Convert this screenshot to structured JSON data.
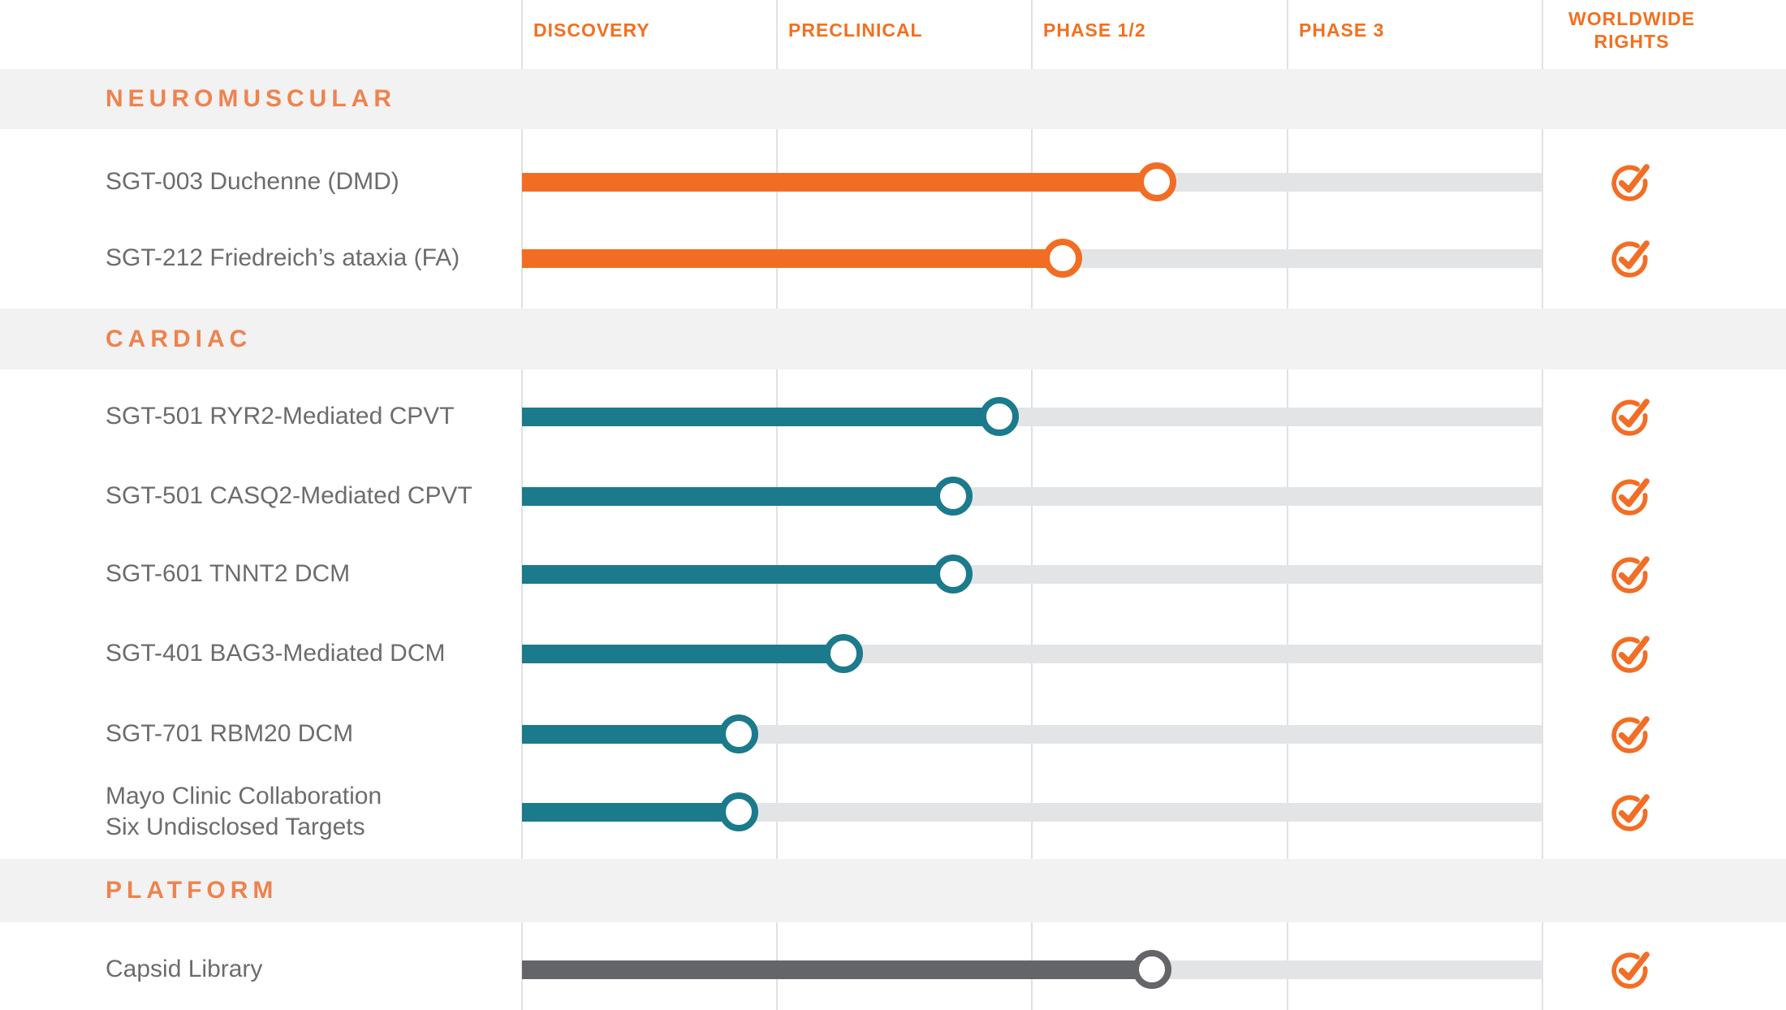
{
  "palette": {
    "orange": "#F26D24",
    "teal": "#1B7A8C",
    "gray": "#646568",
    "section_title_orange": "#EE834E",
    "column_header_orange": "#F2701F",
    "check_orange": "#F26E24",
    "track_gray": "#E3E4E6",
    "band_gray": "#F2F2F3",
    "label_gray": "#6B6C6E"
  },
  "header": {
    "columns": [
      {
        "label": "DISCOVERY"
      },
      {
        "label": "PRECLINICAL"
      },
      {
        "label": "PHASE 1/2"
      },
      {
        "label": "PHASE 3"
      },
      {
        "label": "WORLDWIDE\nRIGHTS"
      }
    ]
  },
  "sections": [
    {
      "title": "NEUROMUSCULAR",
      "rows": [
        {
          "label": "SGT-003 Duchenne (DMD)",
          "color": "orange",
          "progress": 2.49,
          "worldwide_rights": true
        },
        {
          "label": "SGT-212 Friedreich’s ataxia (FA)",
          "color": "orange",
          "progress": 2.12,
          "worldwide_rights": true
        }
      ]
    },
    {
      "title": "CARDIAC",
      "rows": [
        {
          "label": "SGT-501 RYR2-Mediated CPVT",
          "color": "teal",
          "progress": 1.87,
          "worldwide_rights": true
        },
        {
          "label": "SGT-501 CASQ2-Mediated CPVT",
          "color": "teal",
          "progress": 1.69,
          "worldwide_rights": true
        },
        {
          "label": "SGT-601 TNNT2 DCM",
          "color": "teal",
          "progress": 1.69,
          "worldwide_rights": true
        },
        {
          "label": "SGT-401 BAG3-Mediated DCM",
          "color": "teal",
          "progress": 1.26,
          "worldwide_rights": true
        },
        {
          "label": "SGT-701 RBM20 DCM",
          "color": "teal",
          "progress": 0.85,
          "worldwide_rights": true
        },
        {
          "label": "Mayo Clinic Collaboration",
          "label2": "Six Undisclosed Targets",
          "color": "teal",
          "progress": 0.85,
          "worldwide_rights": true
        }
      ]
    },
    {
      "title": "PLATFORM",
      "rows": [
        {
          "label": "Capsid Library",
          "color": "gray",
          "progress": 2.47,
          "worldwide_rights": true
        }
      ]
    }
  ],
  "chart_data": {
    "type": "bar",
    "orientation": "horizontal",
    "title": "",
    "stage_axis": [
      "DISCOVERY",
      "PRECLINICAL",
      "PHASE 1/2",
      "PHASE 3"
    ],
    "extra_column": "WORLDWIDE RIGHTS",
    "categories": [
      "SGT-003 Duchenne (DMD)",
      "SGT-212 Friedreich’s ataxia (FA)",
      "SGT-501 RYR2-Mediated CPVT",
      "SGT-501 CASQ2-Mediated CPVT",
      "SGT-601 TNNT2 DCM",
      "SGT-401 BAG3-Mediated DCM",
      "SGT-701 RBM20 DCM",
      "Mayo Clinic Collaboration Six Undisclosed Targets",
      "Capsid Library"
    ],
    "groups": [
      "NEUROMUSCULAR",
      "NEUROMUSCULAR",
      "CARDIAC",
      "CARDIAC",
      "CARDIAC",
      "CARDIAC",
      "CARDIAC",
      "CARDIAC",
      "PLATFORM"
    ],
    "values": [
      2.49,
      2.12,
      1.87,
      1.69,
      1.69,
      1.26,
      0.85,
      0.85,
      2.47
    ],
    "value_units": "stages completed (0 = Discovery start, 1 = Preclinical start, 2 = Phase 1/2 start, 3 = Phase 3 start)",
    "worldwide_rights": [
      true,
      true,
      true,
      true,
      true,
      true,
      true,
      true,
      true
    ],
    "xlim": [
      0,
      4
    ],
    "grid": true,
    "legend": "none"
  }
}
